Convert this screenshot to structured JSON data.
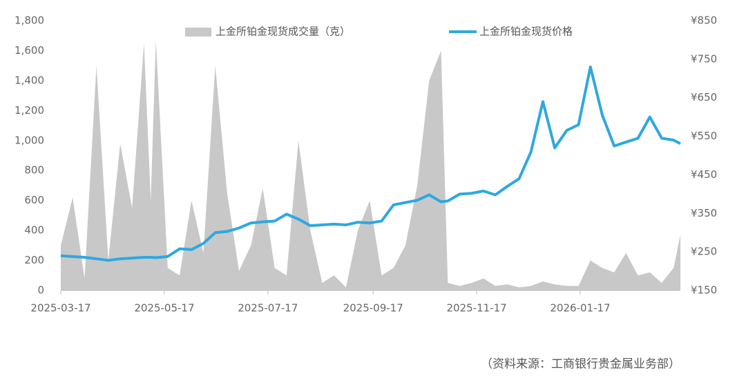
{
  "chart_data": {
    "type": "area-line",
    "series": [
      {
        "name": "上金所铂金现货成交量（克）",
        "type": "area",
        "color": "#c8c8c8",
        "axis": "y",
        "values": [
          300,
          620,
          80,
          1500,
          200,
          980,
          550,
          1650,
          600,
          1670,
          150,
          100,
          600,
          250,
          1500,
          650,
          130,
          300,
          680,
          150,
          100,
          1000,
          400,
          50,
          100,
          20,
          400,
          600,
          100,
          150,
          300,
          700,
          1400,
          1600,
          50,
          30,
          50,
          80,
          30,
          40,
          20,
          30,
          60,
          40,
          30,
          30,
          200,
          150,
          120,
          250,
          100,
          120,
          50,
          150,
          370
        ]
      },
      {
        "name": "上金所铂金现货价格",
        "type": "line",
        "color": "#2ea8e0",
        "axis": "y2",
        "values": [
          240,
          238,
          236,
          232,
          228,
          232,
          234,
          236,
          236,
          235,
          238,
          258,
          256,
          272,
          300,
          303,
          312,
          325,
          328,
          330,
          348,
          335,
          318,
          320,
          322,
          320,
          327,
          325,
          330,
          372,
          378,
          384,
          398,
          380,
          382,
          400,
          402,
          408,
          398,
          420,
          440,
          510,
          640,
          520,
          565,
          580,
          730,
          605,
          525,
          535,
          545,
          600,
          545,
          540,
          531
        ]
      }
    ],
    "x": [
      "2025-03-17",
      "2025-03-24",
      "2025-03-31",
      "2025-04-07",
      "2025-04-14",
      "2025-04-21",
      "2025-04-28",
      "2025-05-05",
      "2025-05-09",
      "2025-05-12",
      "2025-05-19",
      "2025-05-26",
      "2025-06-02",
      "2025-06-09",
      "2025-06-16",
      "2025-06-23",
      "2025-06-30",
      "2025-07-07",
      "2025-07-14",
      "2025-07-21",
      "2025-07-28",
      "2025-08-04",
      "2025-08-11",
      "2025-08-18",
      "2025-08-25",
      "2025-09-01",
      "2025-09-08",
      "2025-09-15",
      "2025-09-22",
      "2025-09-29",
      "2025-10-06",
      "2025-10-13",
      "2025-10-20",
      "2025-10-27",
      "2025-10-31",
      "2025-11-07",
      "2025-11-14",
      "2025-11-21",
      "2025-11-28",
      "2025-12-05",
      "2025-12-12",
      "2025-12-19",
      "2025-12-26",
      "2026-01-02",
      "2026-01-09",
      "2026-01-16",
      "2026-01-23",
      "2026-01-30",
      "2026-02-06",
      "2026-02-13",
      "2026-02-20",
      "2026-02-27",
      "2026-03-06",
      "2026-03-13",
      "2026-03-17"
    ],
    "xlim": [
      "2025-03-17",
      "2026-03-17"
    ],
    "xticks": [
      "2025-03-17",
      "2025-05-17",
      "2025-07-17",
      "2025-09-17",
      "2025-11-17",
      "2026-01-17"
    ],
    "ylim": [
      0,
      1800
    ],
    "yticks": [
      0,
      200,
      400,
      600,
      800,
      {
        "value": 1000,
        "label": "1,000"
      },
      {
        "value": 1200,
        "label": "1,200"
      },
      {
        "value": 1400,
        "label": "1,400"
      },
      {
        "value": 1600,
        "label": "1,600"
      },
      {
        "value": 1800,
        "label": "1,800"
      }
    ],
    "y2lim": [
      150,
      850
    ],
    "y2ticks": [
      {
        "value": 150,
        "label": "¥150"
      },
      {
        "value": 250,
        "label": "¥250"
      },
      {
        "value": 350,
        "label": "¥350"
      },
      {
        "value": 450,
        "label": "¥450"
      },
      {
        "value": 550,
        "label": "¥550"
      },
      {
        "value": 650,
        "label": "¥650"
      },
      {
        "value": 750,
        "label": "¥750"
      },
      {
        "value": 850,
        "label": "¥850"
      }
    ],
    "source": "（资料来源：工商银行贵金属业务部）"
  }
}
